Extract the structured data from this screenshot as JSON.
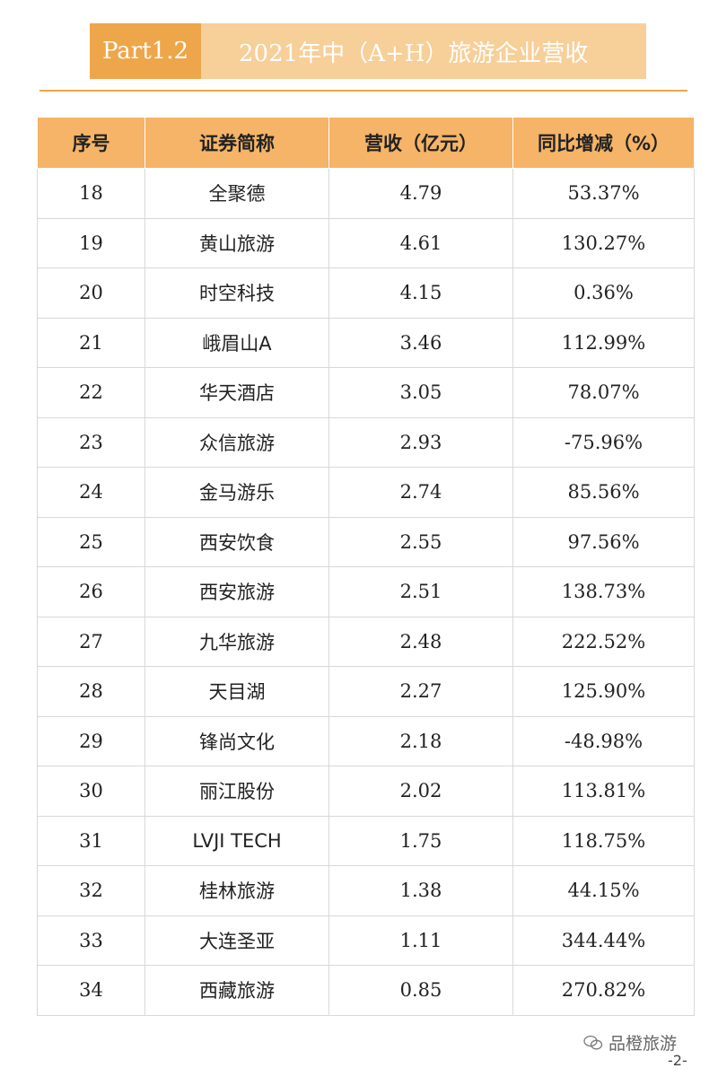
{
  "banner": {
    "part": "Part1.2",
    "title": "2021年中（A+H）旅游企业营收"
  },
  "table": {
    "headers": [
      "序号",
      "证券简称",
      "营收（亿元）",
      "同比增减（%）"
    ],
    "rows": [
      [
        "18",
        "全聚德",
        "4.79",
        "53.37%"
      ],
      [
        "19",
        "黄山旅游",
        "4.61",
        "130.27%"
      ],
      [
        "20",
        "时空科技",
        "4.15",
        "0.36%"
      ],
      [
        "21",
        "峨眉山A",
        "3.46",
        "112.99%"
      ],
      [
        "22",
        "华天酒店",
        "3.05",
        "78.07%"
      ],
      [
        "23",
        "众信旅游",
        "2.93",
        "-75.96%"
      ],
      [
        "24",
        "金马游乐",
        "2.74",
        "85.56%"
      ],
      [
        "25",
        "西安饮食",
        "2.55",
        "97.56%"
      ],
      [
        "26",
        "西安旅游",
        "2.51",
        "138.73%"
      ],
      [
        "27",
        "九华旅游",
        "2.48",
        "222.52%"
      ],
      [
        "28",
        "天目湖",
        "2.27",
        "125.90%"
      ],
      [
        "29",
        "锋尚文化",
        "2.18",
        "-48.98%"
      ],
      [
        "30",
        "丽江股份",
        "2.02",
        "113.81%"
      ],
      [
        "31",
        "LVJI TECH",
        "1.75",
        "118.75%"
      ],
      [
        "32",
        "桂林旅游",
        "1.38",
        "44.15%"
      ],
      [
        "33",
        "大连圣亚",
        "1.11",
        "344.44%"
      ],
      [
        "34",
        "西藏旅游",
        "0.85",
        "270.82%"
      ]
    ]
  },
  "footer": {
    "watermark": "品橙旅游",
    "watermark_icon": "wechat-icon",
    "page": "-2-"
  },
  "colors": {
    "accent": "#eea64a",
    "accent_light": "#f7cf98",
    "header_bg": "#f5b467"
  }
}
